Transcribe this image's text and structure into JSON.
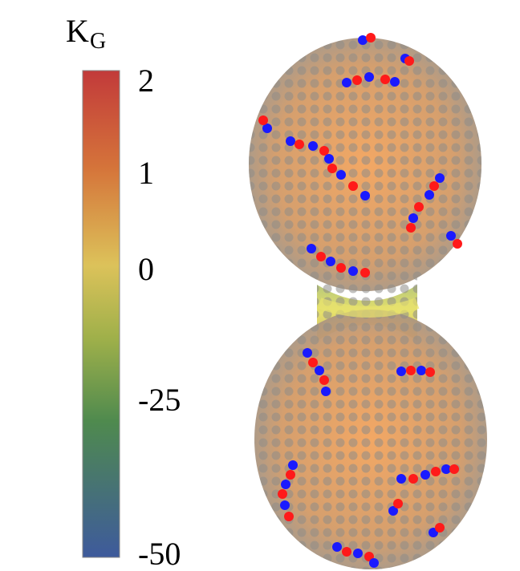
{
  "colorbar": {
    "title": "K",
    "subscript": "G",
    "ticks": [
      2,
      1,
      0,
      -25,
      -50
    ]
  }
}
